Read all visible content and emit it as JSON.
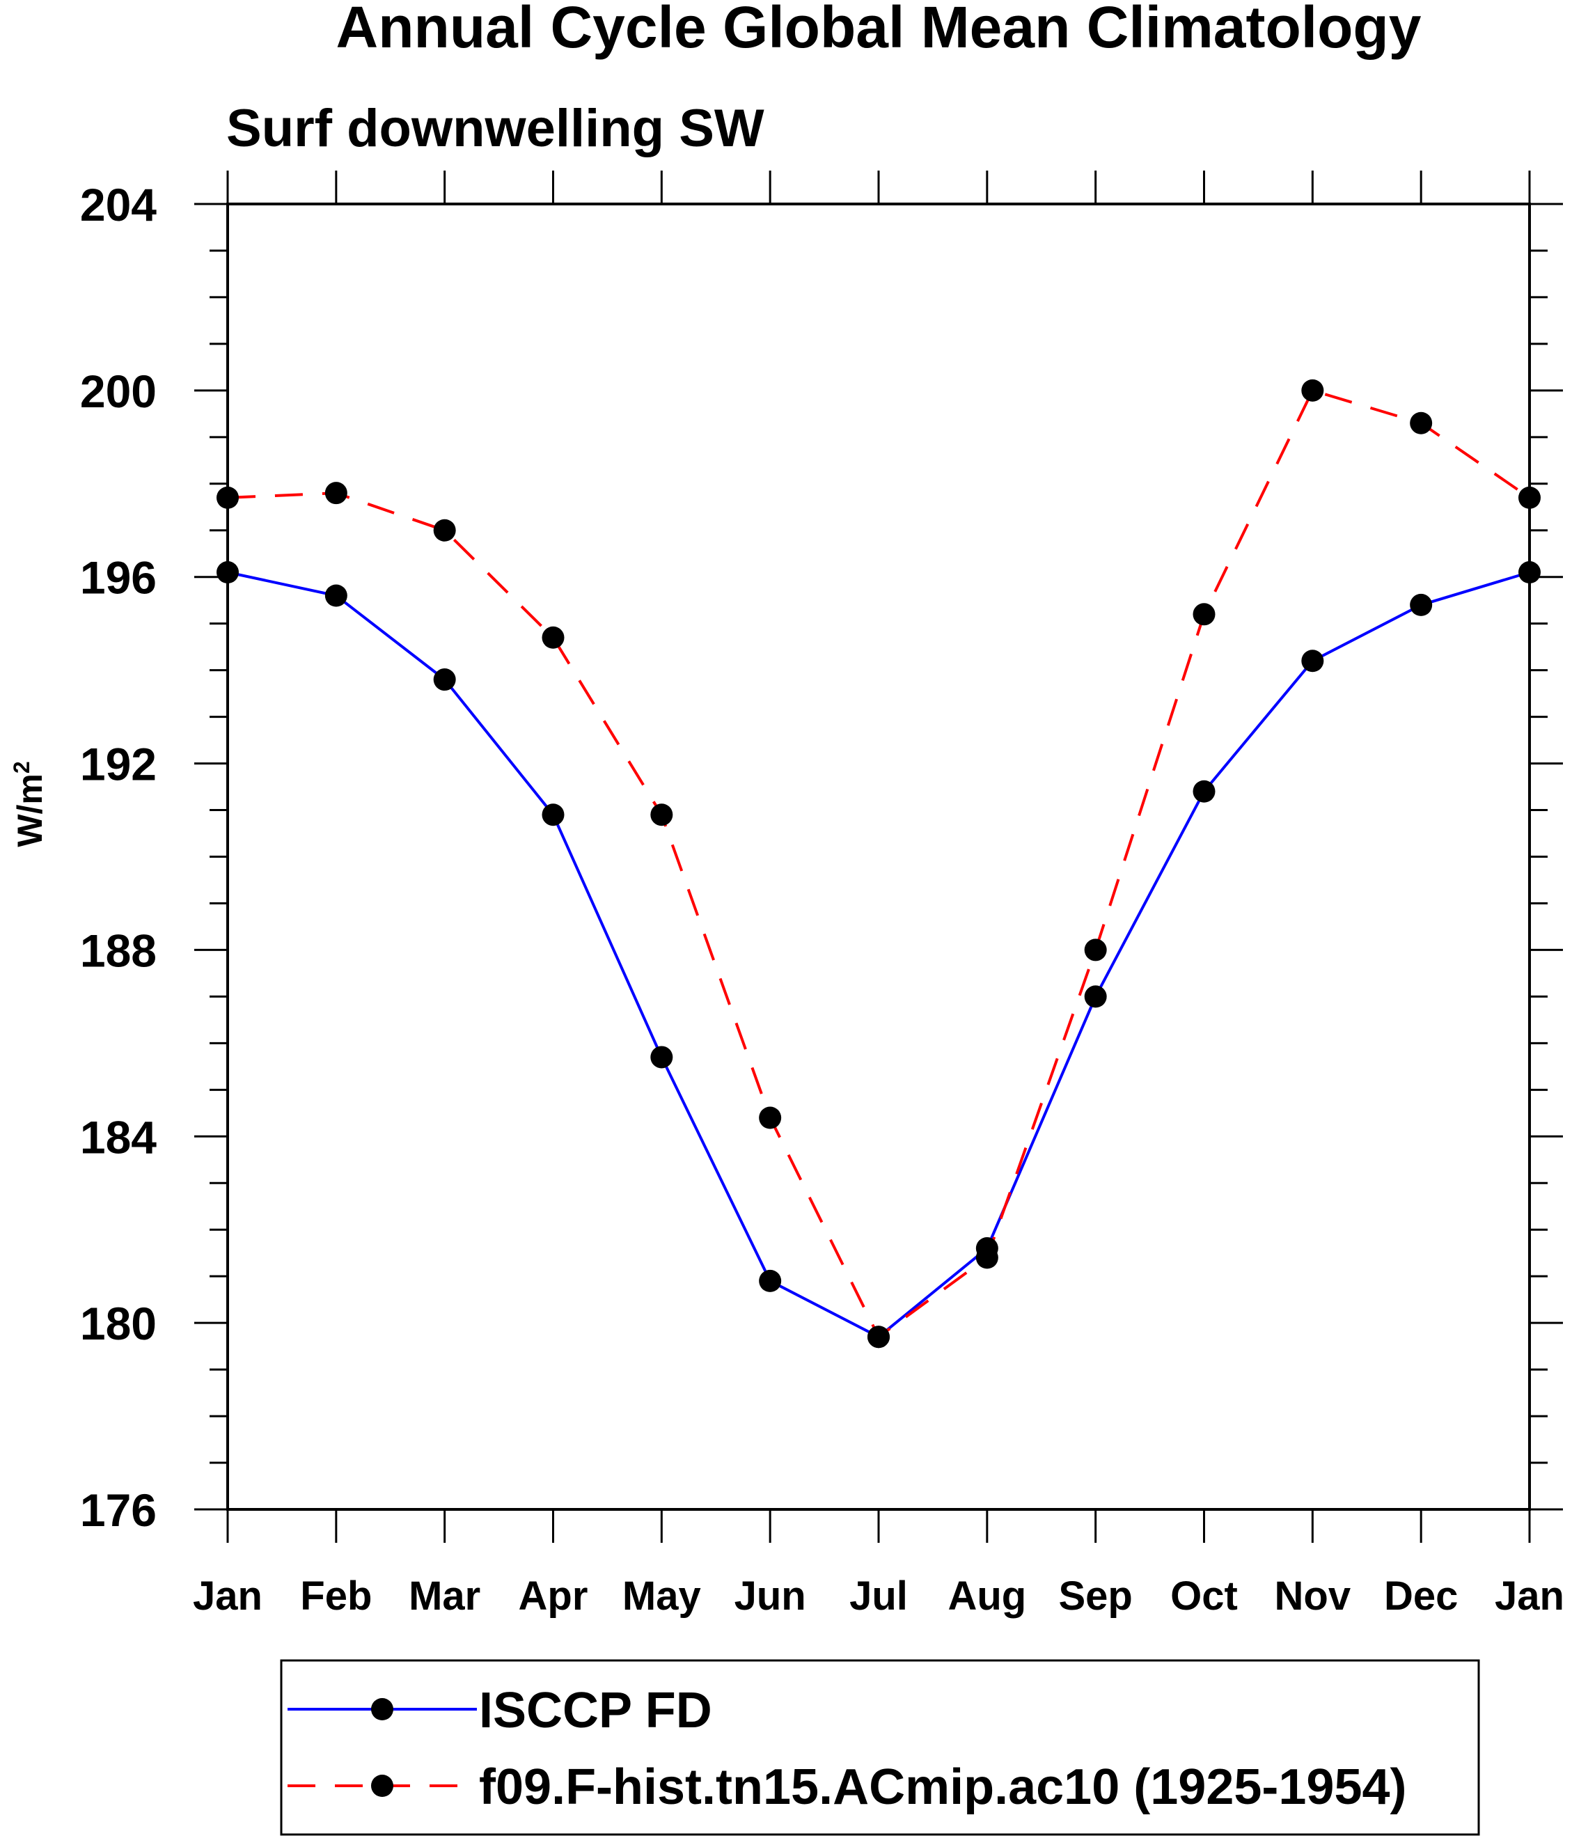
{
  "chart_data": {
    "type": "line",
    "title": "Annual Cycle Global Mean Climatology",
    "subtitle": "Surf downwelling SW",
    "ylabel": "W/m",
    "ylabel_superscript": "2",
    "xlabel": "",
    "categories": [
      "Jan",
      "Feb",
      "Mar",
      "Apr",
      "May",
      "Jun",
      "Jul",
      "Aug",
      "Sep",
      "Oct",
      "Nov",
      "Dec",
      "Jan"
    ],
    "ylim": [
      176,
      204
    ],
    "yticks": [
      176,
      180,
      184,
      188,
      192,
      196,
      200,
      204
    ],
    "yticks_labels": [
      "176",
      "180",
      "184",
      "188",
      "192",
      "196",
      "200",
      "204"
    ],
    "y_minor_step": 1,
    "legend_position": "bottom",
    "series": [
      {
        "name": "ISCCP FD",
        "color": "#0000ff",
        "style": "solid",
        "marker": "circle",
        "values": [
          196.1,
          195.6,
          193.8,
          190.9,
          185.7,
          180.9,
          179.7,
          181.6,
          187.0,
          191.4,
          194.2,
          195.4,
          196.1
        ]
      },
      {
        "name": "f09.F-hist.tn15.ACmip.ac10 (1925-1954)",
        "color": "#ff0000",
        "style": "dashed",
        "marker": "circle",
        "values": [
          197.7,
          197.8,
          197.0,
          194.7,
          190.9,
          184.4,
          179.7,
          181.4,
          188.0,
          195.2,
          200.0,
          199.3,
          197.7
        ]
      }
    ]
  }
}
